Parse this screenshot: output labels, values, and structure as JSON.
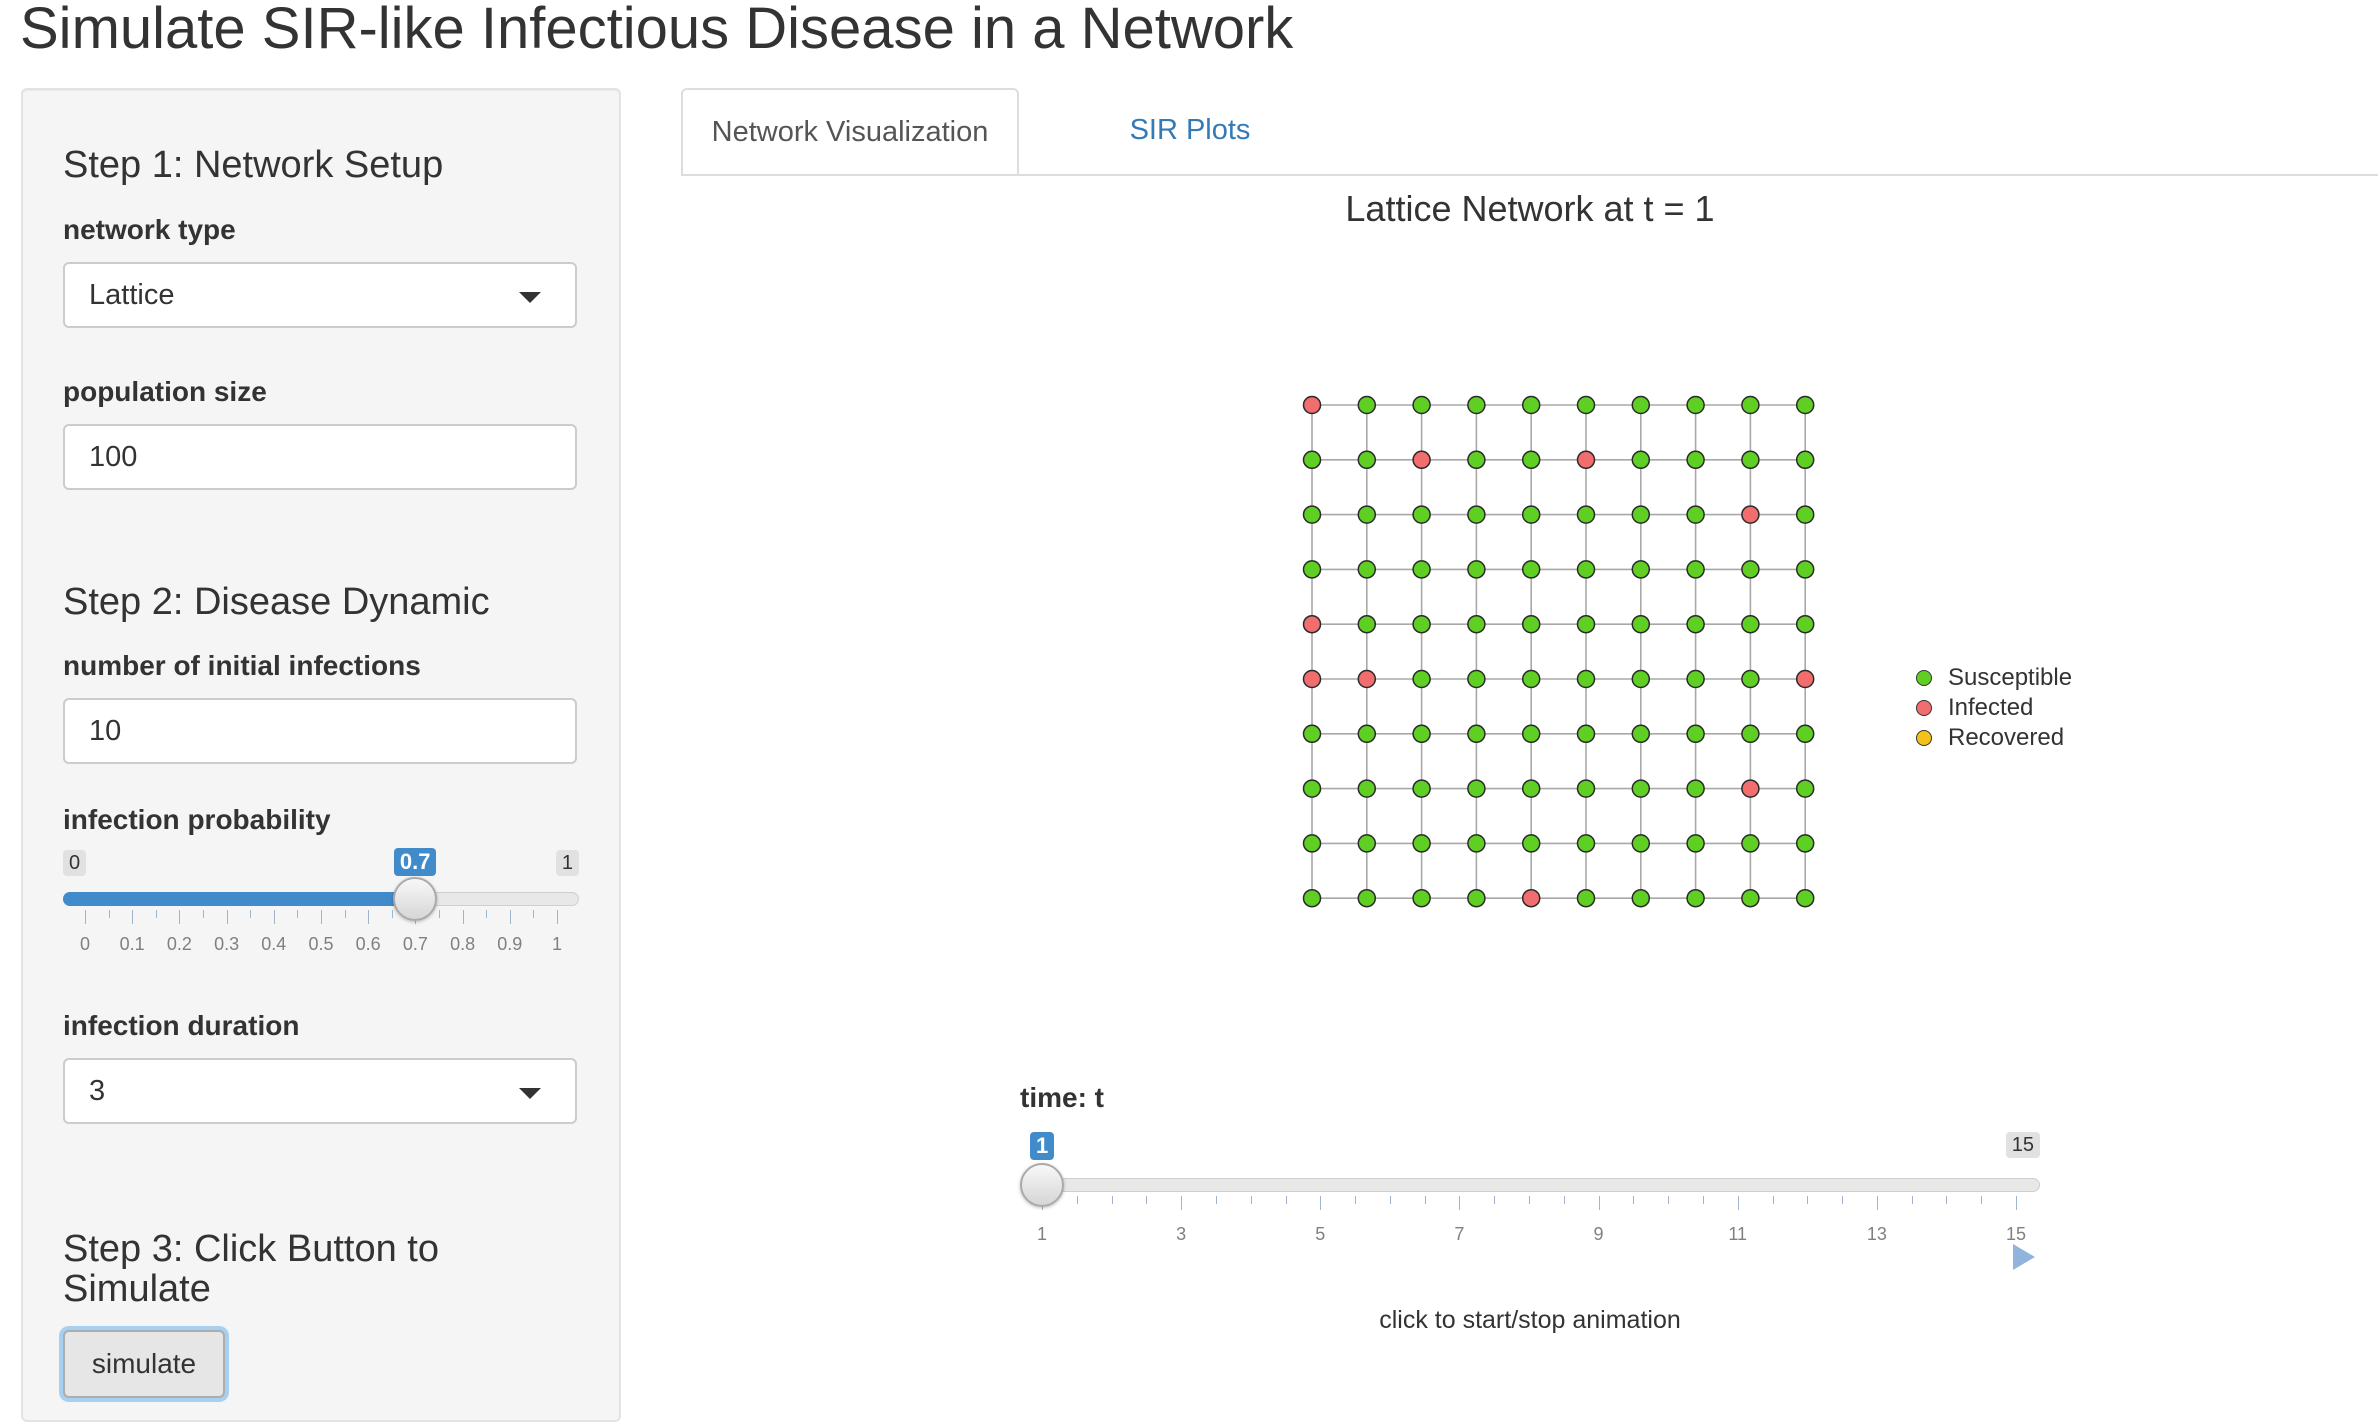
{
  "app": {
    "title": "Simulate SIR-like Infectious Disease in a Network"
  },
  "sidebar": {
    "step1": {
      "heading": "Step 1: Network Setup",
      "network_type_label": "network type",
      "network_type_value": "Lattice",
      "population_label": "population size",
      "population_value": "100"
    },
    "step2": {
      "heading": "Step 2: Disease Dynamic",
      "initial_infections_label": "number of initial infections",
      "initial_infections_value": "10",
      "infection_prob_label": "infection probability",
      "infection_prob_slider": {
        "min": 0,
        "max": 1,
        "value": 0.7,
        "min_label": "0",
        "max_label": "1",
        "value_label": "0.7",
        "tick_labels": [
          "0",
          "0.1",
          "0.2",
          "0.3",
          "0.4",
          "0.5",
          "0.6",
          "0.7",
          "0.8",
          "0.9",
          "1"
        ]
      },
      "duration_label": "infection duration",
      "duration_value": "3"
    },
    "step3": {
      "heading": "Step 3: Click Button to Simulate",
      "button_label": "simulate"
    }
  },
  "tabs": [
    {
      "label": "Network Visualization",
      "active": true
    },
    {
      "label": "SIR Plots",
      "active": false
    }
  ],
  "plot": {
    "title": "Lattice Network at t = 1",
    "legend": [
      {
        "label": "Susceptible",
        "color": "#5fcf24"
      },
      {
        "label": "Infected",
        "color": "#f26d6d"
      },
      {
        "label": "Recovered",
        "color": "#f2c21b"
      }
    ],
    "grid": {
      "rows": 10,
      "cols": 10,
      "states": [
        "ISSSSSSSSS",
        "SSISSISSSS",
        "SSSSSSSSIS",
        "SSSSSSSSSS",
        "ISSSSSSSSS",
        "IISSSSSSSI",
        "SSSSSSSSSS",
        "SSSSSSSSIS",
        "SSSSSSSSSS",
        "SSSSISSSSS"
      ]
    }
  },
  "time_slider": {
    "label": "time: t",
    "min": 1,
    "max": 15,
    "value": 1,
    "min_label": "1",
    "max_label": "15",
    "value_label": "1",
    "tick_labels": [
      "1",
      "3",
      "5",
      "7",
      "9",
      "11",
      "13",
      "15"
    ],
    "animate_hint": "click to start/stop animation",
    "play_icon": "play-icon"
  },
  "colors": {
    "accent": "#428bca",
    "link": "#337ab7"
  }
}
